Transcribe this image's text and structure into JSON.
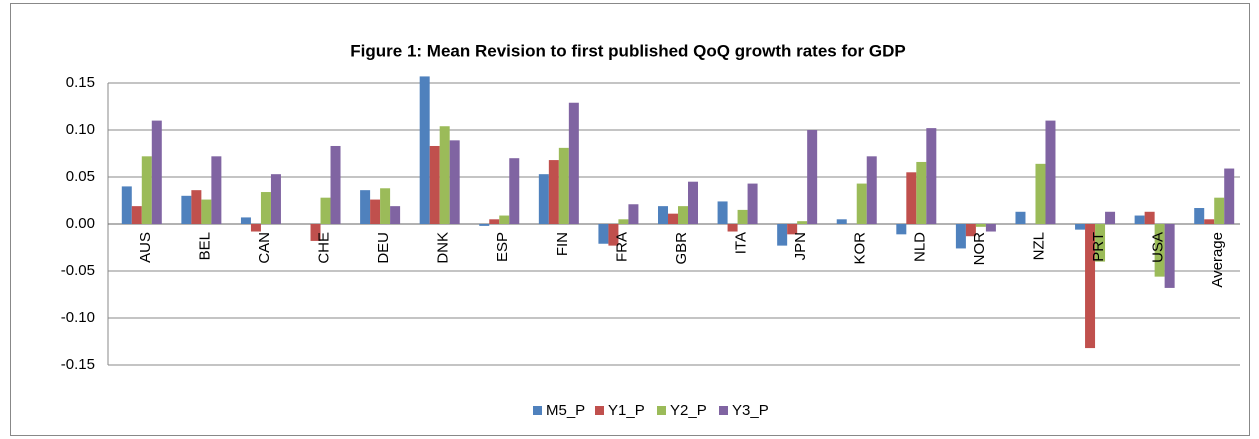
{
  "chart_data": {
    "type": "bar",
    "title": "Figure 1: Mean Revision to first published QoQ growth rates for GDP",
    "categories": [
      "AUS",
      "BEL",
      "CAN",
      "CHE",
      "DEU",
      "DNK",
      "ESP",
      "FIN",
      "FRA",
      "GBR",
      "ITA",
      "JPN",
      "KOR",
      "NLD",
      "NOR",
      "NZL",
      "PRT",
      "USA",
      "Average"
    ],
    "series": [
      {
        "name": "M5_P",
        "color": "#4f81bd",
        "values": [
          0.04,
          0.03,
          0.007,
          0,
          0.036,
          0.157,
          -0.002,
          0.053,
          -0.021,
          0.019,
          0.024,
          -0.023,
          0.005,
          -0.011,
          -0.026,
          0.013,
          -0.006,
          0.009,
          0.017
        ]
      },
      {
        "name": "Y1_P",
        "color": "#c0504d",
        "values": [
          0.019,
          0.036,
          -0.008,
          -0.018,
          0.026,
          0.083,
          0.005,
          0.068,
          -0.023,
          0.011,
          -0.008,
          -0.011,
          0,
          0.055,
          -0.013,
          0,
          -0.132,
          0.013,
          0.005
        ]
      },
      {
        "name": "Y2_P",
        "color": "#9bbb59",
        "values": [
          0.072,
          0.026,
          0.034,
          0.028,
          0.038,
          0.104,
          0.009,
          0.081,
          0.005,
          0.019,
          0.015,
          0.003,
          0.043,
          0.066,
          -0.003,
          0.064,
          -0.04,
          -0.056,
          0.028
        ]
      },
      {
        "name": "Y3_P",
        "color": "#8064a2",
        "values": [
          0.11,
          0.072,
          0.053,
          0.083,
          0.019,
          0.089,
          0.07,
          0.129,
          0.021,
          0.045,
          0.043,
          0.1,
          0.072,
          0.102,
          -0.008,
          0.11,
          0.013,
          -0.068,
          0.059
        ]
      }
    ],
    "ylim": [
      -0.15,
      0.15
    ],
    "yticks": [
      {
        "value": -0.15,
        "label": "-0.15"
      },
      {
        "value": -0.1,
        "label": "-0.10"
      },
      {
        "value": -0.05,
        "label": "-0.05"
      },
      {
        "value": 0,
        "label": "0.00"
      },
      {
        "value": 0.05,
        "label": "0.05"
      },
      {
        "value": 0.1,
        "label": "0.10"
      },
      {
        "value": 0.15,
        "label": "0.15"
      }
    ],
    "grid": true,
    "legend": "bottom"
  }
}
